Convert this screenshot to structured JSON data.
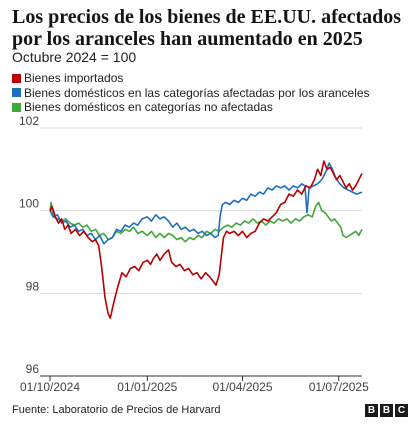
{
  "header": {
    "title": "Los precios de los bienes de EE.UU. afectados por los aranceles han aumentado en 2025",
    "subtitle": "Octubre 2024 = 100"
  },
  "footer": {
    "source": "Fuente: Laboratorio de Precios de Harvard",
    "logo_letters": [
      "B",
      "B",
      "C"
    ]
  },
  "chart_data": {
    "type": "line",
    "title": "Los precios de los bienes de EE.UU. afectados por los aranceles han aumentado en 2025",
    "subtitle": "Octubre 2024 = 100",
    "xlabel": "",
    "ylabel": "",
    "x_ticks": [
      "01/10/2024",
      "01/01/2025",
      "01/04/2025",
      "01/07/2025"
    ],
    "y_ticks": [
      96,
      98,
      100,
      102
    ],
    "ylim": [
      96,
      102
    ],
    "xlim": [
      "2024-10-01",
      "2025-07-23"
    ],
    "grid": "horizontal",
    "legend": "top-left",
    "series": [
      {
        "name": "Bienes importados",
        "color": "#b80000",
        "points": [
          [
            "2024-10-01",
            100.0
          ],
          [
            "2024-10-03",
            100.1
          ],
          [
            "2024-10-06",
            99.85
          ],
          [
            "2024-10-09",
            99.7
          ],
          [
            "2024-10-12",
            99.8
          ],
          [
            "2024-10-15",
            99.55
          ],
          [
            "2024-10-18",
            99.65
          ],
          [
            "2024-10-21",
            99.45
          ],
          [
            "2024-10-25",
            99.55
          ],
          [
            "2024-10-29",
            99.4
          ],
          [
            "2024-11-02",
            99.5
          ],
          [
            "2024-11-06",
            99.35
          ],
          [
            "2024-11-10",
            99.25
          ],
          [
            "2024-11-13",
            99.3
          ],
          [
            "2024-11-16",
            99.15
          ],
          [
            "2024-11-19",
            98.6
          ],
          [
            "2024-11-22",
            97.9
          ],
          [
            "2024-11-25",
            97.5
          ],
          [
            "2024-11-27",
            97.4
          ],
          [
            "2024-11-30",
            97.75
          ],
          [
            "2024-12-04",
            98.15
          ],
          [
            "2024-12-08",
            98.5
          ],
          [
            "2024-12-12",
            98.4
          ],
          [
            "2024-12-16",
            98.6
          ],
          [
            "2024-12-20",
            98.65
          ],
          [
            "2024-12-24",
            98.55
          ],
          [
            "2024-12-28",
            98.75
          ],
          [
            "2025-01-01",
            98.8
          ],
          [
            "2025-01-04",
            98.7
          ],
          [
            "2025-01-07",
            98.85
          ],
          [
            "2025-01-10",
            98.95
          ],
          [
            "2025-01-13",
            98.8
          ],
          [
            "2025-01-17",
            98.95
          ],
          [
            "2025-01-21",
            99.05
          ],
          [
            "2025-01-24",
            98.75
          ],
          [
            "2025-01-28",
            98.65
          ],
          [
            "2025-02-01",
            98.7
          ],
          [
            "2025-02-05",
            98.55
          ],
          [
            "2025-02-09",
            98.6
          ],
          [
            "2025-02-13",
            98.45
          ],
          [
            "2025-02-17",
            98.5
          ],
          [
            "2025-02-21",
            98.35
          ],
          [
            "2025-02-25",
            98.5
          ],
          [
            "2025-03-01",
            98.4
          ],
          [
            "2025-03-04",
            98.3
          ],
          [
            "2025-03-07",
            98.2
          ],
          [
            "2025-03-10",
            98.45
          ],
          [
            "2025-03-12",
            98.9
          ],
          [
            "2025-03-14",
            99.35
          ],
          [
            "2025-03-17",
            99.5
          ],
          [
            "2025-03-20",
            99.45
          ],
          [
            "2025-03-24",
            99.5
          ],
          [
            "2025-03-28",
            99.4
          ],
          [
            "2025-04-01",
            99.5
          ],
          [
            "2025-04-05",
            99.35
          ],
          [
            "2025-04-09",
            99.45
          ],
          [
            "2025-04-13",
            99.5
          ],
          [
            "2025-04-17",
            99.7
          ],
          [
            "2025-04-21",
            99.8
          ],
          [
            "2025-04-25",
            99.75
          ],
          [
            "2025-04-29",
            99.85
          ],
          [
            "2025-05-03",
            99.95
          ],
          [
            "2025-05-07",
            100.15
          ],
          [
            "2025-05-11",
            100.2
          ],
          [
            "2025-05-15",
            100.4
          ],
          [
            "2025-05-19",
            100.35
          ],
          [
            "2025-05-23",
            100.5
          ],
          [
            "2025-05-27",
            100.4
          ],
          [
            "2025-05-31",
            100.6
          ],
          [
            "2025-06-04",
            100.55
          ],
          [
            "2025-06-08",
            100.75
          ],
          [
            "2025-06-11",
            101.0
          ],
          [
            "2025-06-14",
            100.85
          ],
          [
            "2025-06-17",
            101.2
          ],
          [
            "2025-06-20",
            101.0
          ],
          [
            "2025-06-23",
            101.05
          ],
          [
            "2025-06-26",
            100.9
          ],
          [
            "2025-06-29",
            100.75
          ],
          [
            "2025-07-02",
            100.85
          ],
          [
            "2025-07-05",
            100.7
          ],
          [
            "2025-07-08",
            100.55
          ],
          [
            "2025-07-11",
            100.65
          ],
          [
            "2025-07-14",
            100.5
          ],
          [
            "2025-07-17",
            100.6
          ],
          [
            "2025-07-20",
            100.75
          ],
          [
            "2025-07-23",
            100.9
          ]
        ]
      },
      {
        "name": "Bienes domésticos en las categorías afectadas por los aranceles",
        "color": "#1f6fbf",
        "points": [
          [
            "2024-10-01",
            100.0
          ],
          [
            "2024-10-04",
            99.85
          ],
          [
            "2024-10-08",
            99.9
          ],
          [
            "2024-10-12",
            99.7
          ],
          [
            "2024-10-16",
            99.75
          ],
          [
            "2024-10-20",
            99.6
          ],
          [
            "2024-10-24",
            99.65
          ],
          [
            "2024-10-28",
            99.5
          ],
          [
            "2024-11-01",
            99.55
          ],
          [
            "2024-11-05",
            99.4
          ],
          [
            "2024-11-09",
            99.45
          ],
          [
            "2024-11-13",
            99.3
          ],
          [
            "2024-11-17",
            99.4
          ],
          [
            "2024-11-21",
            99.2
          ],
          [
            "2024-11-25",
            99.3
          ],
          [
            "2024-11-29",
            99.35
          ],
          [
            "2024-12-03",
            99.55
          ],
          [
            "2024-12-07",
            99.5
          ],
          [
            "2024-12-11",
            99.65
          ],
          [
            "2024-12-15",
            99.6
          ],
          [
            "2024-12-19",
            99.7
          ],
          [
            "2024-12-23",
            99.65
          ],
          [
            "2024-12-27",
            99.8
          ],
          [
            "2025-01-01",
            99.85
          ],
          [
            "2025-01-05",
            99.75
          ],
          [
            "2025-01-09",
            99.9
          ],
          [
            "2025-01-13",
            99.8
          ],
          [
            "2025-01-17",
            99.85
          ],
          [
            "2025-01-21",
            99.75
          ],
          [
            "2025-01-25",
            99.6
          ],
          [
            "2025-01-29",
            99.7
          ],
          [
            "2025-02-02",
            99.55
          ],
          [
            "2025-02-06",
            99.6
          ],
          [
            "2025-02-10",
            99.5
          ],
          [
            "2025-02-14",
            99.55
          ],
          [
            "2025-02-18",
            99.45
          ],
          [
            "2025-02-22",
            99.5
          ],
          [
            "2025-02-26",
            99.4
          ],
          [
            "2025-03-02",
            99.45
          ],
          [
            "2025-03-06",
            99.35
          ],
          [
            "2025-03-09",
            99.4
          ],
          [
            "2025-03-11",
            99.9
          ],
          [
            "2025-03-13",
            100.15
          ],
          [
            "2025-03-16",
            100.2
          ],
          [
            "2025-03-20",
            100.15
          ],
          [
            "2025-03-24",
            100.25
          ],
          [
            "2025-03-28",
            100.2
          ],
          [
            "2025-04-01",
            100.3
          ],
          [
            "2025-04-05",
            100.25
          ],
          [
            "2025-04-09",
            100.4
          ],
          [
            "2025-04-13",
            100.35
          ],
          [
            "2025-04-17",
            100.45
          ],
          [
            "2025-04-21",
            100.4
          ],
          [
            "2025-04-25",
            100.55
          ],
          [
            "2025-04-29",
            100.5
          ],
          [
            "2025-05-03",
            100.6
          ],
          [
            "2025-05-07",
            100.55
          ],
          [
            "2025-05-11",
            100.6
          ],
          [
            "2025-05-15",
            100.5
          ],
          [
            "2025-05-19",
            100.6
          ],
          [
            "2025-05-23",
            100.55
          ],
          [
            "2025-05-27",
            100.65
          ],
          [
            "2025-05-30",
            100.6
          ],
          [
            "2025-06-01",
            99.95
          ],
          [
            "2025-06-03",
            100.55
          ],
          [
            "2025-06-07",
            100.6
          ],
          [
            "2025-06-11",
            100.65
          ],
          [
            "2025-06-15",
            100.75
          ],
          [
            "2025-06-19",
            100.95
          ],
          [
            "2025-06-22",
            101.15
          ],
          [
            "2025-06-25",
            101.0
          ],
          [
            "2025-06-28",
            100.8
          ],
          [
            "2025-07-02",
            100.65
          ],
          [
            "2025-07-06",
            100.55
          ],
          [
            "2025-07-10",
            100.5
          ],
          [
            "2025-07-14",
            100.45
          ],
          [
            "2025-07-18",
            100.4
          ],
          [
            "2025-07-23",
            100.45
          ]
        ]
      },
      {
        "name": "Bienes domésticos en categorías no afectadas",
        "color": "#3fa83a",
        "points": [
          [
            "2024-10-01",
            100.0
          ],
          [
            "2024-10-02",
            100.2
          ],
          [
            "2024-10-04",
            99.85
          ],
          [
            "2024-10-08",
            99.8
          ],
          [
            "2024-10-12",
            99.75
          ],
          [
            "2024-10-16",
            99.8
          ],
          [
            "2024-10-20",
            99.7
          ],
          [
            "2024-10-24",
            99.65
          ],
          [
            "2024-10-28",
            99.7
          ],
          [
            "2024-11-01",
            99.6
          ],
          [
            "2024-11-05",
            99.65
          ],
          [
            "2024-11-09",
            99.5
          ],
          [
            "2024-11-13",
            99.55
          ],
          [
            "2024-11-17",
            99.4
          ],
          [
            "2024-11-21",
            99.45
          ],
          [
            "2024-11-25",
            99.3
          ],
          [
            "2024-11-29",
            99.35
          ],
          [
            "2024-12-03",
            99.5
          ],
          [
            "2024-12-07",
            99.45
          ],
          [
            "2024-12-11",
            99.55
          ],
          [
            "2024-12-15",
            99.5
          ],
          [
            "2024-12-19",
            99.6
          ],
          [
            "2024-12-23",
            99.45
          ],
          [
            "2024-12-27",
            99.5
          ],
          [
            "2025-01-01",
            99.4
          ],
          [
            "2025-01-05",
            99.5
          ],
          [
            "2025-01-09",
            99.35
          ],
          [
            "2025-01-13",
            99.45
          ],
          [
            "2025-01-17",
            99.35
          ],
          [
            "2025-01-21",
            99.45
          ],
          [
            "2025-01-25",
            99.4
          ],
          [
            "2025-01-29",
            99.3
          ],
          [
            "2025-02-02",
            99.35
          ],
          [
            "2025-02-06",
            99.25
          ],
          [
            "2025-02-10",
            99.35
          ],
          [
            "2025-02-14",
            99.3
          ],
          [
            "2025-02-18",
            99.4
          ],
          [
            "2025-02-22",
            99.35
          ],
          [
            "2025-02-26",
            99.5
          ],
          [
            "2025-03-02",
            99.45
          ],
          [
            "2025-03-06",
            99.55
          ],
          [
            "2025-03-10",
            99.5
          ],
          [
            "2025-03-14",
            99.6
          ],
          [
            "2025-03-18",
            99.65
          ],
          [
            "2025-03-22",
            99.6
          ],
          [
            "2025-03-26",
            99.7
          ],
          [
            "2025-03-30",
            99.65
          ],
          [
            "2025-04-03",
            99.75
          ],
          [
            "2025-04-07",
            99.7
          ],
          [
            "2025-04-11",
            99.8
          ],
          [
            "2025-04-15",
            99.7
          ],
          [
            "2025-04-19",
            99.75
          ],
          [
            "2025-04-23",
            99.65
          ],
          [
            "2025-04-27",
            99.75
          ],
          [
            "2025-05-01",
            99.7
          ],
          [
            "2025-05-05",
            99.8
          ],
          [
            "2025-05-09",
            99.75
          ],
          [
            "2025-05-13",
            99.8
          ],
          [
            "2025-05-17",
            99.7
          ],
          [
            "2025-05-21",
            99.8
          ],
          [
            "2025-05-25",
            99.75
          ],
          [
            "2025-05-29",
            99.85
          ],
          [
            "2025-06-02",
            99.9
          ],
          [
            "2025-06-06",
            99.85
          ],
          [
            "2025-06-09",
            100.1
          ],
          [
            "2025-06-12",
            100.2
          ],
          [
            "2025-06-15",
            100.0
          ],
          [
            "2025-06-18",
            99.95
          ],
          [
            "2025-06-21",
            99.85
          ],
          [
            "2025-06-24",
            99.75
          ],
          [
            "2025-06-27",
            99.8
          ],
          [
            "2025-06-30",
            99.7
          ],
          [
            "2025-07-03",
            99.6
          ],
          [
            "2025-07-05",
            99.4
          ],
          [
            "2025-07-08",
            99.35
          ],
          [
            "2025-07-11",
            99.4
          ],
          [
            "2025-07-14",
            99.45
          ],
          [
            "2025-07-17",
            99.5
          ],
          [
            "2025-07-20",
            99.4
          ],
          [
            "2025-07-23",
            99.55
          ]
        ]
      }
    ]
  }
}
